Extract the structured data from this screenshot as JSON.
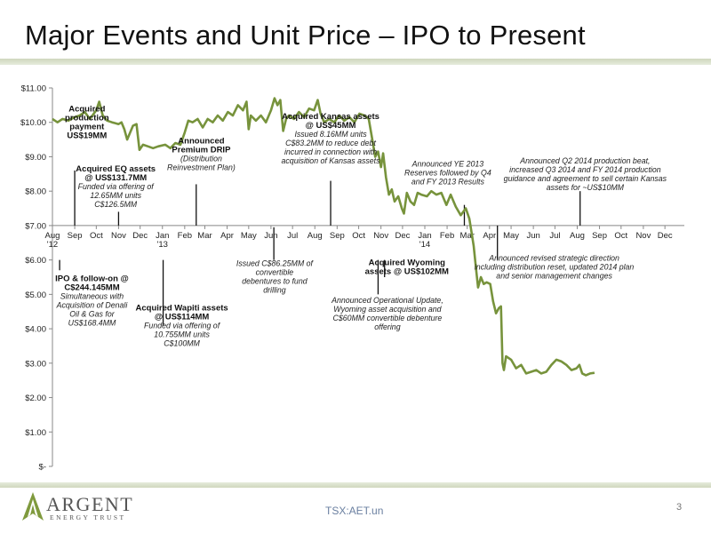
{
  "slide": {
    "title": "Major Events and Unit Price – IPO to Present",
    "footer_ticker": "TSX:AET.un",
    "page_number": "3",
    "logo_name": "ARGENT",
    "logo_tagline": "ENERGY TRUST"
  },
  "colors": {
    "series": "#77933c",
    "accent": "#c8d4a4"
  },
  "chart_data": {
    "type": "line",
    "title": "",
    "xlabel": "",
    "ylabel": "",
    "ylim": [
      0,
      11
    ],
    "yticks": [
      {
        "value": 0,
        "label": "$-"
      },
      {
        "value": 1,
        "label": "$1.00"
      },
      {
        "value": 2,
        "label": "$2.00"
      },
      {
        "value": 3,
        "label": "$3.00"
      },
      {
        "value": 4,
        "label": "$4.00"
      },
      {
        "value": 5,
        "label": "$5.00"
      },
      {
        "value": 6,
        "label": "$6.00"
      },
      {
        "value": 7,
        "label": "$7.00"
      },
      {
        "value": 8,
        "label": "$8.00"
      },
      {
        "value": 9,
        "label": "$9.00"
      },
      {
        "value": 10,
        "label": "$10.00"
      },
      {
        "value": 11,
        "label": "$11.00"
      }
    ],
    "x_axis_at": 7,
    "x_range_months": [
      "2012-08",
      "2014-12"
    ],
    "xticks": [
      {
        "date": "2012-08",
        "label": "Aug",
        "sub": "'12"
      },
      {
        "date": "2012-09",
        "label": "Sep"
      },
      {
        "date": "2012-10",
        "label": "Oct"
      },
      {
        "date": "2012-11",
        "label": "Nov"
      },
      {
        "date": "2012-12",
        "label": "Dec"
      },
      {
        "date": "2013-01",
        "label": "Jan",
        "sub": "'13"
      },
      {
        "date": "2013-02",
        "label": "Feb"
      },
      {
        "date": "2013-03",
        "label": "Mar"
      },
      {
        "date": "2013-04",
        "label": "Apr"
      },
      {
        "date": "2013-05",
        "label": "May"
      },
      {
        "date": "2013-06",
        "label": "Jun"
      },
      {
        "date": "2013-07",
        "label": "Jul"
      },
      {
        "date": "2013-08",
        "label": "Aug"
      },
      {
        "date": "2013-09",
        "label": "Sep"
      },
      {
        "date": "2013-10",
        "label": "Oct"
      },
      {
        "date": "2013-11",
        "label": "Nov"
      },
      {
        "date": "2013-12",
        "label": "Dec"
      },
      {
        "date": "2014-01",
        "label": "Jan",
        "sub": "'14"
      },
      {
        "date": "2014-02",
        "label": "Feb"
      },
      {
        "date": "2014-03",
        "label": "Mar"
      },
      {
        "date": "2014-04",
        "label": "Apr"
      },
      {
        "date": "2014-05",
        "label": "May"
      },
      {
        "date": "2014-06",
        "label": "Jun"
      },
      {
        "date": "2014-07",
        "label": "Jul"
      },
      {
        "date": "2014-08",
        "label": "Aug"
      },
      {
        "date": "2014-09",
        "label": "Sep"
      },
      {
        "date": "2014-10",
        "label": "Oct"
      },
      {
        "date": "2014-11",
        "label": "Nov"
      },
      {
        "date": "2014-12",
        "label": "Dec"
      }
    ],
    "series": [
      {
        "name": "",
        "points": [
          [
            "2012-08-01",
            10.1
          ],
          [
            "2012-08-08",
            10.0
          ],
          [
            "2012-08-15",
            10.1
          ],
          [
            "2012-08-23",
            10.05
          ],
          [
            "2012-09-01",
            10.15
          ],
          [
            "2012-09-08",
            10.2
          ],
          [
            "2012-09-15",
            10.3
          ],
          [
            "2012-09-22",
            10.1
          ],
          [
            "2012-10-01",
            10.35
          ],
          [
            "2012-10-05",
            10.6
          ],
          [
            "2012-10-10",
            10.2
          ],
          [
            "2012-10-16",
            10.05
          ],
          [
            "2012-10-23",
            10.0
          ],
          [
            "2012-11-01",
            9.95
          ],
          [
            "2012-11-05",
            10.0
          ],
          [
            "2012-11-09",
            9.8
          ],
          [
            "2012-11-13",
            9.5
          ],
          [
            "2012-11-17",
            9.7
          ],
          [
            "2012-11-21",
            9.9
          ],
          [
            "2012-11-26",
            9.95
          ],
          [
            "2012-11-30",
            9.2
          ],
          [
            "2012-12-05",
            9.35
          ],
          [
            "2012-12-12",
            9.3
          ],
          [
            "2012-12-19",
            9.25
          ],
          [
            "2012-12-26",
            9.3
          ],
          [
            "2013-01-05",
            9.35
          ],
          [
            "2013-01-12",
            9.25
          ],
          [
            "2013-01-19",
            9.4
          ],
          [
            "2013-01-26",
            9.35
          ],
          [
            "2013-02-01",
            9.7
          ],
          [
            "2013-02-06",
            10.05
          ],
          [
            "2013-02-12",
            10.0
          ],
          [
            "2013-02-19",
            10.1
          ],
          [
            "2013-02-26",
            9.85
          ],
          [
            "2013-03-05",
            10.1
          ],
          [
            "2013-03-12",
            10.0
          ],
          [
            "2013-03-19",
            10.2
          ],
          [
            "2013-03-26",
            10.05
          ],
          [
            "2013-04-02",
            10.3
          ],
          [
            "2013-04-09",
            10.2
          ],
          [
            "2013-04-16",
            10.5
          ],
          [
            "2013-04-23",
            10.35
          ],
          [
            "2013-04-28",
            10.6
          ],
          [
            "2013-05-01",
            9.8
          ],
          [
            "2013-05-04",
            10.2
          ],
          [
            "2013-05-11",
            10.05
          ],
          [
            "2013-05-18",
            10.2
          ],
          [
            "2013-05-25",
            10.0
          ],
          [
            "2013-06-01",
            10.35
          ],
          [
            "2013-06-06",
            10.7
          ],
          [
            "2013-06-10",
            10.5
          ],
          [
            "2013-06-14",
            10.65
          ],
          [
            "2013-06-18",
            9.75
          ],
          [
            "2013-06-22",
            10.1
          ],
          [
            "2013-06-26",
            10.2
          ],
          [
            "2013-07-03",
            10.1
          ],
          [
            "2013-07-10",
            10.3
          ],
          [
            "2013-07-17",
            10.15
          ],
          [
            "2013-07-24",
            10.4
          ],
          [
            "2013-07-31",
            10.35
          ],
          [
            "2013-08-05",
            10.65
          ],
          [
            "2013-08-09",
            10.25
          ],
          [
            "2013-08-14",
            10.0
          ],
          [
            "2013-08-21",
            10.1
          ],
          [
            "2013-08-28",
            10.0
          ],
          [
            "2013-09-04",
            10.2
          ],
          [
            "2013-09-11",
            10.05
          ],
          [
            "2013-09-18",
            10.15
          ],
          [
            "2013-09-25",
            10.0
          ],
          [
            "2013-10-02",
            10.25
          ],
          [
            "2013-10-09",
            10.2
          ],
          [
            "2013-10-15",
            10.1
          ],
          [
            "2013-10-20",
            9.5
          ],
          [
            "2013-10-24",
            9.0
          ],
          [
            "2013-10-28",
            9.15
          ],
          [
            "2013-11-01",
            8.7
          ],
          [
            "2013-11-04",
            9.1
          ],
          [
            "2013-11-08",
            8.4
          ],
          [
            "2013-11-12",
            7.9
          ],
          [
            "2013-11-16",
            8.05
          ],
          [
            "2013-11-20",
            7.7
          ],
          [
            "2013-11-25",
            7.85
          ],
          [
            "2013-11-30",
            7.5
          ],
          [
            "2013-12-03",
            7.35
          ],
          [
            "2013-12-07",
            7.95
          ],
          [
            "2013-12-12",
            7.7
          ],
          [
            "2013-12-17",
            7.6
          ],
          [
            "2013-12-22",
            7.95
          ],
          [
            "2013-12-27",
            7.9
          ],
          [
            "2014-01-04",
            7.85
          ],
          [
            "2014-01-10",
            8.0
          ],
          [
            "2014-01-17",
            7.9
          ],
          [
            "2014-01-24",
            7.95
          ],
          [
            "2014-01-31",
            7.6
          ],
          [
            "2014-02-06",
            7.9
          ],
          [
            "2014-02-13",
            7.55
          ],
          [
            "2014-02-20",
            7.3
          ],
          [
            "2014-02-27",
            7.5
          ],
          [
            "2014-03-04",
            7.2
          ],
          [
            "2014-03-07",
            6.8
          ],
          [
            "2014-03-10",
            6.4
          ],
          [
            "2014-03-13",
            5.8
          ],
          [
            "2014-03-16",
            5.2
          ],
          [
            "2014-03-20",
            5.5
          ],
          [
            "2014-03-24",
            5.3
          ],
          [
            "2014-03-28",
            5.35
          ],
          [
            "2014-04-02",
            5.3
          ],
          [
            "2014-04-06",
            4.8
          ],
          [
            "2014-04-10",
            4.45
          ],
          [
            "2014-04-14",
            4.6
          ],
          [
            "2014-04-17",
            4.65
          ],
          [
            "2014-04-19",
            3.0
          ],
          [
            "2014-04-21",
            2.8
          ],
          [
            "2014-04-24",
            3.2
          ],
          [
            "2014-05-01",
            3.1
          ],
          [
            "2014-05-08",
            2.85
          ],
          [
            "2014-05-15",
            2.95
          ],
          [
            "2014-05-22",
            2.7
          ],
          [
            "2014-05-29",
            2.75
          ],
          [
            "2014-06-05",
            2.8
          ],
          [
            "2014-06-12",
            2.7
          ],
          [
            "2014-06-19",
            2.75
          ],
          [
            "2014-06-26",
            2.95
          ],
          [
            "2014-07-03",
            3.1
          ],
          [
            "2014-07-10",
            3.05
          ],
          [
            "2014-07-17",
            2.95
          ],
          [
            "2014-07-24",
            2.8
          ],
          [
            "2014-07-31",
            2.85
          ],
          [
            "2014-08-04",
            2.95
          ],
          [
            "2014-08-08",
            2.7
          ],
          [
            "2014-08-13",
            2.65
          ],
          [
            "2014-08-19",
            2.7
          ],
          [
            "2014-08-25",
            2.72
          ]
        ]
      }
    ],
    "annotations": [
      {
        "anchor_date": "2012-08-11",
        "bar": [
          6.0,
          5.7
        ],
        "anchor": "start",
        "text_date": "2012-09-25",
        "text_y": 5.38,
        "bold": [
          "IPO & follow-on @",
          "C$244.145MM"
        ],
        "italic": [
          "Simultaneous with",
          "Acquisition of Denali",
          "Oil & Gas for",
          "US$168.4MM"
        ]
      },
      {
        "anchor_date": "2012-09-01",
        "bar": [
          8.6,
          7.0
        ],
        "anchor": "end",
        "text_date": "2012-09-18",
        "text_y": 10.32,
        "bold": [
          "Acquired",
          "production",
          "payment",
          "US$19MM"
        ],
        "italic": []
      },
      {
        "anchor_date": "2012-11-01",
        "bar": [
          7.4,
          7.0
        ],
        "anchor": "end",
        "text_date": "2012-10-28",
        "text_y": 8.57,
        "bold": [
          "Acquired EQ assets",
          "@ US$131.7MM"
        ],
        "italic": [
          "Funded via offering of",
          "12.65MM units",
          "C$126.5MM"
        ]
      },
      {
        "anchor_date": "2013-01-02",
        "bar": [
          6.0,
          4.1
        ],
        "anchor": "start",
        "text_date": "2013-01-28",
        "text_y": 4.53,
        "bold": [
          "Acquired Wapiti assets",
          "@ US$114MM"
        ],
        "italic": [
          "Funded via offering of",
          "10.755MM units",
          "C$100MM"
        ]
      },
      {
        "anchor_date": "2013-02-17",
        "bar": [
          8.2,
          7.0
        ],
        "anchor": "end",
        "text_date": "2013-02-24",
        "text_y": 9.38,
        "bold": [
          "Announced",
          "Premium DRIP"
        ],
        "italic": [
          "(Distribution",
          "Reinvestment Plan)"
        ]
      },
      {
        "anchor_date": "2013-06-05",
        "bar": [
          6.0,
          6.95
        ],
        "anchor": "start",
        "text_date": "2013-06-06",
        "text_y": 5.82,
        "bold": [],
        "italic": [
          "Issued C$86.25MM of",
          "convertible",
          "debentures to fund",
          "drilling"
        ]
      },
      {
        "anchor_date": "2013-08-23",
        "bar": [
          8.3,
          7.0
        ],
        "anchor": "end",
        "text_date": "2013-08-23",
        "text_y": 10.1,
        "bold": [
          "Acquired Kansas assets",
          "@ US$45MM"
        ],
        "italic": [
          "Issued 8.16MM units",
          "C$83.2MM to reduce debt",
          "incurred in connection with",
          "acquisition of Kansas assets"
        ]
      },
      {
        "anchor_date": "2013-10-28",
        "bar": [
          6.0,
          5.0
        ],
        "anchor": "start",
        "text_date": "2013-11-10",
        "text_y": 4.75,
        "bold": [],
        "italic": [
          "Announced Operational Update,",
          "Wyoming asset acquisition and",
          "C$60MM convertible debenture",
          "offering"
        ]
      },
      {
        "anchor_date": "2013-11-06",
        "bar": [
          6.0,
          5.5
        ],
        "anchor": "start",
        "text_date": "2013-12-07",
        "text_y": 5.85,
        "bold": [
          "Acquired Wyoming",
          "assets @ US$102MM"
        ],
        "italic": []
      },
      {
        "anchor_date": "2014-02-25",
        "bar": [
          7.6,
          7.0
        ],
        "anchor": "end",
        "text_date": "2014-02-02",
        "text_y": 8.72,
        "bold": [],
        "italic": [
          "Announced YE 2013",
          "Reserves followed by Q4",
          "and FY 2013 Results"
        ]
      },
      {
        "anchor_date": "2014-04-12",
        "bar": [
          6.0,
          7.0
        ],
        "anchor": "start",
        "text_date": "2014-06-30",
        "text_y": 5.98,
        "bold": [],
        "italic": [
          "Announced revised strategic direction",
          "including distribution reset, updated 2014 plan",
          "and senior management changes"
        ]
      },
      {
        "anchor_date": "2014-08-05",
        "bar": [
          8.0,
          7.0
        ],
        "anchor": "end",
        "text_date": "2014-08-12",
        "text_y": 8.8,
        "bold": [],
        "italic": [
          "Announced Q2 2014 production beat,",
          "increased Q3 2014 and FY 2014 production",
          "guidance and agreement to sell certain Kansas",
          "assets for ~US$10MM"
        ]
      }
    ],
    "grid": false,
    "legend": "none"
  }
}
